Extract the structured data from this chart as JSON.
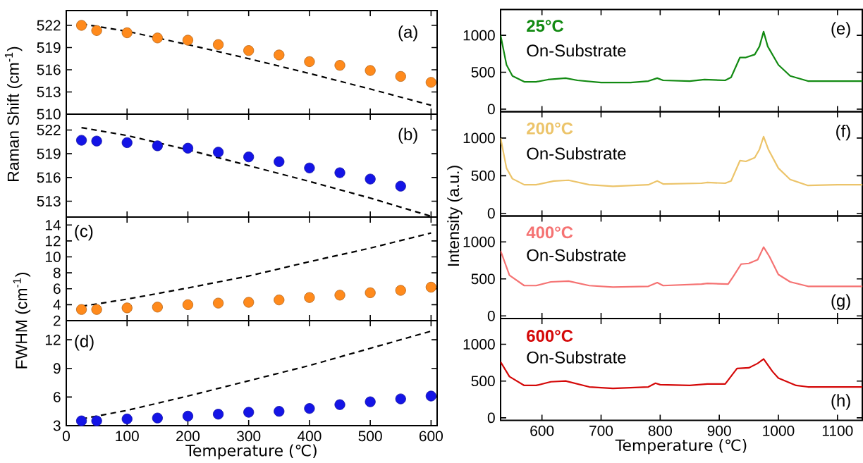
{
  "chart_data": [
    {
      "type": "scatter",
      "ylabel": "Raman Shift (cm$^{-1}$)",
      "xlim": [
        0,
        610
      ],
      "xticks": [
        0,
        100,
        200,
        300,
        400,
        500,
        600
      ],
      "ylim": [
        510,
        524
      ],
      "yticks": [
        510,
        513,
        516,
        519,
        522
      ],
      "tick_labels": "y",
      "annotations": [
        "(a)"
      ],
      "series": [
        {
          "type": "scatter",
          "marker": "circle",
          "color": "#ff8a1c",
          "x": [
            25,
            50,
            100,
            150,
            200,
            250,
            300,
            350,
            400,
            450,
            500,
            550,
            600
          ],
          "values": [
            522.0,
            521.3,
            521.0,
            520.3,
            520.0,
            519.4,
            518.6,
            518.0,
            517.1,
            516.6,
            515.9,
            515.1,
            514.3
          ]
        },
        {
          "type": "line",
          "marker": "none",
          "line_style": "dashed",
          "color": "#000000",
          "x": [
            25,
            100,
            200,
            300,
            400,
            500,
            600
          ],
          "values": [
            522.2,
            521.2,
            519.4,
            517.5,
            515.5,
            513.4,
            511.2
          ]
        }
      ]
    },
    {
      "type": "scatter",
      "xlim": [
        0,
        610
      ],
      "xticks": [
        0,
        100,
        200,
        300,
        400,
        500,
        600
      ],
      "ylim": [
        511,
        524
      ],
      "yticks": [
        513,
        516,
        519,
        522
      ],
      "tick_labels": "y",
      "annotations": [
        "(b)"
      ],
      "series": [
        {
          "type": "scatter",
          "marker": "circle",
          "color": "#1414e6",
          "x": [
            25,
            50,
            100,
            150,
            200,
            250,
            300,
            350,
            400,
            450,
            500,
            550
          ],
          "values": [
            520.7,
            520.6,
            520.4,
            520.0,
            519.7,
            519.2,
            518.6,
            518.0,
            517.2,
            516.6,
            515.8,
            514.9
          ]
        },
        {
          "type": "line",
          "marker": "none",
          "line_style": "dashed",
          "color": "#000000",
          "x": [
            25,
            100,
            200,
            300,
            400,
            500,
            600
          ],
          "values": [
            522.3,
            521.3,
            519.5,
            517.5,
            515.5,
            513.4,
            511.1
          ]
        }
      ]
    },
    {
      "type": "scatter",
      "ylabel": "FWHM (cm$^{-1}$)",
      "xlim": [
        0,
        610
      ],
      "xticks": [
        0,
        100,
        200,
        300,
        400,
        500,
        600
      ],
      "ylim": [
        2,
        15
      ],
      "yticks": [
        2,
        4,
        6,
        8,
        10,
        12,
        14
      ],
      "tick_labels": "y",
      "annotations": [
        "(c)"
      ],
      "series": [
        {
          "type": "scatter",
          "marker": "circle",
          "color": "#ff8a1c",
          "x": [
            25,
            50,
            100,
            150,
            200,
            250,
            300,
            350,
            400,
            450,
            500,
            550,
            600
          ],
          "values": [
            3.4,
            3.4,
            3.6,
            3.7,
            4.0,
            4.2,
            4.3,
            4.6,
            4.9,
            5.2,
            5.5,
            5.8,
            6.2
          ]
        },
        {
          "type": "line",
          "marker": "none",
          "line_style": "dashed",
          "color": "#000000",
          "x": [
            25,
            100,
            200,
            300,
            400,
            500,
            600
          ],
          "values": [
            3.8,
            4.7,
            6.1,
            7.6,
            9.4,
            11.1,
            13.0
          ]
        }
      ]
    },
    {
      "type": "scatter",
      "xlabel": "Temperature (℃)",
      "xlim": [
        0,
        610
      ],
      "xticks": [
        0,
        100,
        200,
        300,
        400,
        500,
        600
      ],
      "ylim": [
        3,
        14
      ],
      "yticks": [
        3,
        6,
        9,
        12
      ],
      "annotations": [
        "(d)"
      ],
      "series": [
        {
          "type": "scatter",
          "marker": "circle",
          "color": "#1414e6",
          "x": [
            25,
            50,
            100,
            150,
            200,
            250,
            300,
            350,
            400,
            450,
            500,
            550,
            600
          ],
          "values": [
            3.5,
            3.5,
            3.7,
            3.8,
            4.0,
            4.2,
            4.4,
            4.5,
            4.8,
            5.2,
            5.5,
            5.8,
            6.1
          ]
        },
        {
          "type": "line",
          "marker": "none",
          "line_style": "dashed",
          "color": "#000000",
          "x": [
            25,
            100,
            200,
            300,
            400,
            500,
            600
          ],
          "values": [
            3.7,
            4.6,
            6.1,
            7.7,
            9.3,
            11.1,
            12.9
          ]
        }
      ]
    },
    {
      "type": "line",
      "xlim": [
        530,
        1142
      ],
      "xticks": [
        600,
        700,
        800,
        900,
        1000,
        1100
      ],
      "ylim": [
        -35,
        1350
      ],
      "yticks": [
        0,
        500,
        1000
      ],
      "tick_labels": "y",
      "annotations": [
        "On-Substrate",
        "(e)"
      ],
      "series": [
        {
          "name": "25°C",
          "color": "#128a12",
          "x": [
            530,
            540,
            550,
            570,
            590,
            610,
            640,
            660,
            700,
            750,
            780,
            795,
            805,
            850,
            875,
            910,
            920,
            935,
            945,
            960,
            968,
            975,
            982,
            1000,
            1020,
            1050,
            1100,
            1142
          ],
          "values": [
            1000,
            600,
            450,
            370,
            370,
            400,
            420,
            390,
            360,
            360,
            380,
            420,
            390,
            380,
            400,
            390,
            430,
            700,
            700,
            740,
            850,
            1050,
            850,
            600,
            450,
            380,
            380,
            380
          ]
        }
      ]
    },
    {
      "type": "line",
      "ylabel": "Intensity (a.u.)",
      "xlim": [
        530,
        1142
      ],
      "xticks": [
        600,
        700,
        800,
        900,
        1000,
        1100
      ],
      "ylim": [
        -35,
        1350
      ],
      "yticks": [
        0,
        500,
        1000
      ],
      "tick_labels": "y",
      "annotations": [
        "On-Substrate",
        "(f)"
      ],
      "series": [
        {
          "name": "200°C",
          "color": "#ecc46a",
          "x": [
            530,
            540,
            550,
            570,
            590,
            620,
            645,
            680,
            720,
            780,
            795,
            805,
            870,
            880,
            910,
            920,
            935,
            945,
            960,
            968,
            975,
            983,
            1000,
            1020,
            1050,
            1100,
            1142
          ],
          "values": [
            1000,
            600,
            460,
            380,
            380,
            430,
            440,
            380,
            360,
            380,
            430,
            390,
            400,
            410,
            400,
            430,
            700,
            690,
            740,
            850,
            1020,
            850,
            600,
            450,
            370,
            380,
            380
          ]
        }
      ]
    },
    {
      "type": "line",
      "xlim": [
        530,
        1142
      ],
      "xticks": [
        600,
        700,
        800,
        900,
        1000,
        1100
      ],
      "ylim": [
        -35,
        1350
      ],
      "yticks": [
        0,
        500,
        1000
      ],
      "tick_labels": "y",
      "annotations": [
        "On-Substrate",
        "(g)"
      ],
      "series": [
        {
          "name": "400°C",
          "color": "#f57272",
          "x": [
            530,
            545,
            570,
            590,
            615,
            645,
            680,
            720,
            780,
            795,
            805,
            870,
            880,
            915,
            925,
            937,
            950,
            965,
            975,
            985,
            1000,
            1020,
            1050,
            1100,
            1142
          ],
          "values": [
            880,
            550,
            410,
            410,
            460,
            470,
            410,
            390,
            400,
            450,
            410,
            430,
            440,
            430,
            550,
            700,
            710,
            760,
            930,
            800,
            560,
            460,
            400,
            400,
            400
          ]
        }
      ]
    },
    {
      "type": "line",
      "xlabel": "Temperature (℃)",
      "xlim": [
        530,
        1142
      ],
      "xticks": [
        600,
        700,
        800,
        900,
        1000,
        1100
      ],
      "ylim": [
        -35,
        1350
      ],
      "yticks": [
        0,
        500,
        1000
      ],
      "annotations": [
        "On-Substrate",
        "(h)"
      ],
      "series": [
        {
          "name": "600°C",
          "color": "#d40808",
          "x": [
            530,
            545,
            570,
            590,
            615,
            640,
            680,
            720,
            780,
            792,
            800,
            850,
            880,
            910,
            930,
            950,
            965,
            975,
            990,
            1000,
            1030,
            1050,
            1100,
            1142
          ],
          "values": [
            760,
            560,
            440,
            440,
            490,
            500,
            420,
            400,
            420,
            470,
            450,
            440,
            460,
            460,
            670,
            680,
            740,
            800,
            630,
            540,
            440,
            420,
            420,
            420
          ]
        }
      ]
    }
  ]
}
